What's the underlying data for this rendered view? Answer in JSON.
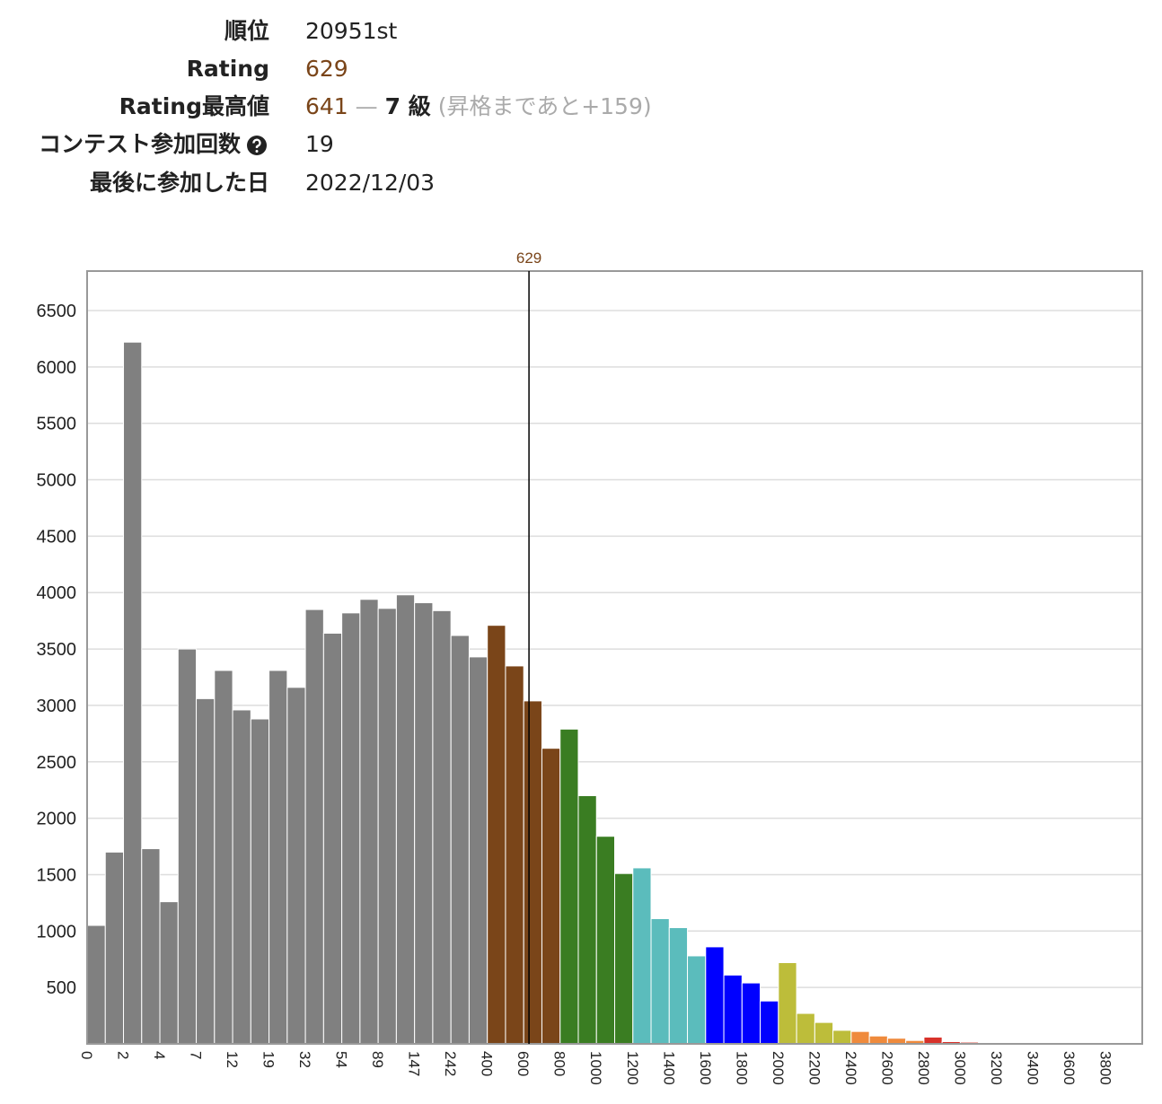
{
  "profile": {
    "rows": [
      {
        "label": "順位",
        "value": "20951st"
      },
      {
        "label": "Rating",
        "value": "629"
      },
      {
        "label": "Rating最高値",
        "value": "641",
        "separator": "—",
        "rank": "7 級",
        "note": "(昇格まであと+159)"
      },
      {
        "label": "コンテスト参加回数",
        "value": "19"
      },
      {
        "label": "最後に参加した日",
        "value": "2022/12/03"
      }
    ]
  },
  "chart_data": {
    "type": "bar",
    "categories": [
      0,
      null,
      2,
      null,
      4,
      null,
      7,
      null,
      12,
      null,
      19,
      null,
      32,
      null,
      54,
      null,
      89,
      null,
      147,
      null,
      242,
      null,
      400,
      null,
      600,
      null,
      800,
      null,
      1000,
      null,
      1200,
      null,
      1400,
      null,
      1600,
      null,
      1800,
      null,
      2000,
      null,
      2200,
      null,
      2400,
      null,
      2600,
      null,
      2800,
      null,
      3000,
      null,
      3200,
      null,
      3400,
      null,
      3600,
      null,
      3800,
      null
    ],
    "values": [
      1050,
      1700,
      6220,
      1730,
      1260,
      3500,
      3060,
      3310,
      2960,
      2880,
      3310,
      3160,
      3850,
      3640,
      3820,
      3940,
      3860,
      3980,
      3910,
      3840,
      3620,
      3430,
      3710,
      3350,
      3040,
      2620,
      2790,
      2200,
      1840,
      1510,
      1560,
      1110,
      1030,
      780,
      860,
      610,
      540,
      380,
      720,
      270,
      190,
      120,
      110,
      70,
      50,
      30,
      60,
      20,
      15,
      10,
      5,
      4,
      3,
      2,
      2,
      1,
      1,
      1
    ],
    "colors": [
      "#808080",
      "#808080",
      "#808080",
      "#808080",
      "#808080",
      "#808080",
      "#808080",
      "#808080",
      "#808080",
      "#808080",
      "#808080",
      "#808080",
      "#808080",
      "#808080",
      "#808080",
      "#808080",
      "#808080",
      "#808080",
      "#808080",
      "#808080",
      "#808080",
      "#808080",
      "#7a4519",
      "#7a4519",
      "#7a4519",
      "#7a4519",
      "#3a7d22",
      "#3a7d22",
      "#3a7d22",
      "#3a7d22",
      "#5bbcbc",
      "#5bbcbc",
      "#5bbcbc",
      "#5bbcbc",
      "#0000ff",
      "#0000ff",
      "#0000ff",
      "#0000ff",
      "#bdbd3a",
      "#bdbd3a",
      "#bdbd3a",
      "#bdbd3a",
      "#ef8a3c",
      "#ef8a3c",
      "#ef8a3c",
      "#ef8a3c",
      "#d8322a",
      "#d8322a",
      "#d8322a",
      "#d8322a",
      "#d8322a",
      "#d8322a",
      "#d8322a",
      "#d8322a",
      "#d8322a",
      "#d8322a",
      "#d8322a",
      "#d8322a"
    ],
    "ylim": [
      0,
      6850
    ],
    "yticks": [
      500,
      1000,
      1500,
      2000,
      2500,
      3000,
      3500,
      4000,
      4500,
      5000,
      5500,
      6000,
      6500
    ],
    "grid": true,
    "marker": 629,
    "marker_color": "#7a4519"
  }
}
